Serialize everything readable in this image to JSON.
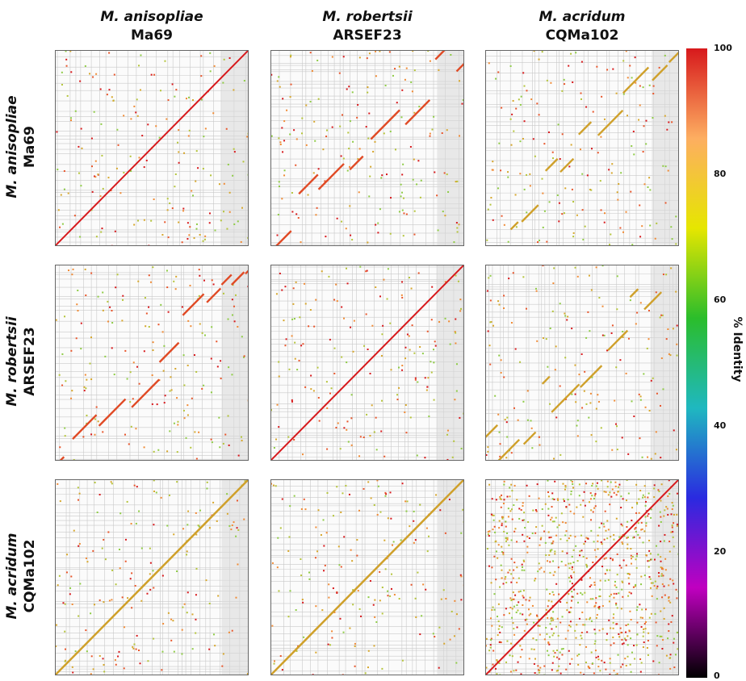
{
  "genomes": [
    {
      "species": "M. anisopliae",
      "strain": "Ma69"
    },
    {
      "species": "M. robertsii",
      "strain": "ARSEF23"
    },
    {
      "species": "M. acridum",
      "strain": "CQMa102"
    }
  ],
  "colorbar": {
    "label": "% Identity",
    "ticks": [
      "100",
      "80",
      "60",
      "40",
      "20",
      "0"
    ],
    "stops": [
      "#d7191c",
      "#fdae61",
      "#e6e600",
      "#2bbd2b",
      "#1fb8c0",
      "#2a2ae0",
      "#c000c0",
      "#000000"
    ]
  },
  "chart_data": {
    "type": "scatter",
    "title": "",
    "description": "3x3 grid of whole-genome dot plots; each panel plots alignment matches between the row genome (y) and column genome (x), colored by % identity.",
    "colormap_range": [
      0,
      100
    ],
    "panels": [
      {
        "row": "Ma69",
        "col": "Ma69",
        "pattern": "diagonal",
        "identity": 100
      },
      {
        "row": "Ma69",
        "col": "ARSEF23",
        "pattern": "fragmented-diagonal",
        "identity": 97
      },
      {
        "row": "Ma69",
        "col": "CQMa102",
        "pattern": "fragmented-diagonal",
        "identity": 90
      },
      {
        "row": "ARSEF23",
        "col": "Ma69",
        "pattern": "fragmented-diagonal",
        "identity": 97
      },
      {
        "row": "ARSEF23",
        "col": "ARSEF23",
        "pattern": "diagonal",
        "identity": 100
      },
      {
        "row": "ARSEF23",
        "col": "CQMa102",
        "pattern": "fragmented-diagonal",
        "identity": 90
      },
      {
        "row": "CQMa102",
        "col": "Ma69",
        "pattern": "diagonal",
        "identity": 90
      },
      {
        "row": "CQMa102",
        "col": "ARSEF23",
        "pattern": "diagonal",
        "identity": 90
      },
      {
        "row": "CQMa102",
        "col": "CQMa102",
        "pattern": "diagonal",
        "identity": 100
      }
    ]
  }
}
